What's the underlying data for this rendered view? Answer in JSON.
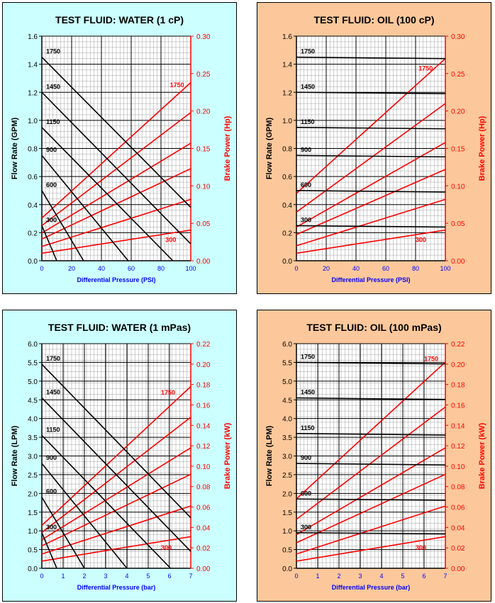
{
  "chart_data": [
    {
      "type": "line",
      "title": "TEST FLUID:  WATER (1 cP)",
      "background": "#ccffff",
      "xlabel": "Differential Pressure (PSI)",
      "ylabel": "Flow Rate (GPM)",
      "y2label": "Brake Power (Hp)",
      "xlim": [
        0,
        100
      ],
      "ylim": [
        0,
        1.6
      ],
      "y2lim": [
        0,
        0.3
      ],
      "xticks": [
        "0",
        "20",
        "40",
        "60",
        "80",
        "100"
      ],
      "yticks": [
        "0.0",
        "0.2",
        "0.4",
        "0.6",
        "0.8",
        "1.0",
        "1.2",
        "1.4",
        "1.6"
      ],
      "y2ticks": [
        "0.00",
        "0.05",
        "0.10",
        "0.15",
        "0.20",
        "0.25",
        "0.30"
      ],
      "flow_series": [
        {
          "name": "1750",
          "x": [
            0,
            100
          ],
          "y": [
            1.45,
            0.38
          ]
        },
        {
          "name": "1450",
          "x": [
            0,
            100
          ],
          "y": [
            1.2,
            0.12
          ]
        },
        {
          "name": "1150",
          "x": [
            0,
            88
          ],
          "y": [
            0.95,
            0
          ]
        },
        {
          "name": "900",
          "x": [
            0,
            58
          ],
          "y": [
            0.75,
            0
          ]
        },
        {
          "name": "600",
          "x": [
            0,
            28
          ],
          "y": [
            0.5,
            0
          ]
        },
        {
          "name": "300",
          "x": [
            0,
            10
          ],
          "y": [
            0.25,
            0
          ]
        }
      ],
      "power_series": [
        {
          "name": "1750",
          "x": [
            0,
            100
          ],
          "y": [
            0.057,
            0.238
          ]
        },
        {
          "name": "1450",
          "x": [
            0,
            100
          ],
          "y": [
            0.047,
            0.198
          ]
        },
        {
          "name": "1150",
          "x": [
            0,
            100
          ],
          "y": [
            0.037,
            0.157
          ]
        },
        {
          "name": "900",
          "x": [
            0,
            100
          ],
          "y": [
            0.029,
            0.123
          ]
        },
        {
          "name": "600",
          "x": [
            0,
            100
          ],
          "y": [
            0.019,
            0.082
          ]
        },
        {
          "name": "300",
          "x": [
            0,
            100
          ],
          "y": [
            0.01,
            0.041
          ]
        }
      ],
      "power_labels": [
        {
          "text": "1750",
          "x": 86,
          "y": 0.232
        },
        {
          "text": "300",
          "x": 83,
          "y": 0.025
        }
      ]
    },
    {
      "type": "line",
      "title": "TEST FLUID:  OIL (100 cP)",
      "background": "#fcc89b",
      "xlabel": "Differential Pressure (PSI)",
      "ylabel": "Flow Rate (GPM)",
      "y2label": "Brake Power (Hp)",
      "xlim": [
        0,
        100
      ],
      "ylim": [
        0,
        1.6
      ],
      "y2lim": [
        0,
        0.3
      ],
      "xticks": [
        "0",
        "20",
        "40",
        "60",
        "80",
        "100"
      ],
      "yticks": [
        "0.0",
        "0.2",
        "0.4",
        "0.6",
        "0.8",
        "1.0",
        "1.2",
        "1.4",
        "1.6"
      ],
      "y2ticks": [
        "0.00",
        "0.05",
        "0.10",
        "0.15",
        "0.20",
        "0.25",
        "0.30"
      ],
      "flow_series": [
        {
          "name": "1750",
          "x": [
            0,
            100
          ],
          "y": [
            1.45,
            1.44
          ]
        },
        {
          "name": "1450",
          "x": [
            0,
            100
          ],
          "y": [
            1.2,
            1.19
          ]
        },
        {
          "name": "1150",
          "x": [
            0,
            100
          ],
          "y": [
            0.95,
            0.94
          ]
        },
        {
          "name": "900",
          "x": [
            0,
            100
          ],
          "y": [
            0.75,
            0.74
          ]
        },
        {
          "name": "600",
          "x": [
            0,
            100
          ],
          "y": [
            0.5,
            0.49
          ]
        },
        {
          "name": "300",
          "x": [
            0,
            100
          ],
          "y": [
            0.25,
            0.24
          ]
        }
      ],
      "power_series": [
        {
          "name": "1750",
          "x": [
            0,
            100
          ],
          "y": [
            0.09,
            0.27
          ]
        },
        {
          "name": "1450",
          "x": [
            0,
            100
          ],
          "y": [
            0.065,
            0.21
          ]
        },
        {
          "name": "1150",
          "x": [
            0,
            100
          ],
          "y": [
            0.045,
            0.158
          ]
        },
        {
          "name": "900",
          "x": [
            0,
            100
          ],
          "y": [
            0.035,
            0.122
          ]
        },
        {
          "name": "600",
          "x": [
            0,
            100
          ],
          "y": [
            0.02,
            0.082
          ]
        },
        {
          "name": "300",
          "x": [
            0,
            100
          ],
          "y": [
            0.01,
            0.041
          ]
        }
      ],
      "power_labels": [
        {
          "text": "1750",
          "x": 82,
          "y": 0.254
        },
        {
          "text": "300",
          "x": 80,
          "y": 0.025
        }
      ]
    },
    {
      "type": "line",
      "title": "TEST FLUID:  WATER (1 mPas)",
      "background": "#ccffff",
      "xlabel": "Differential Pressure (bar)",
      "ylabel": "Flow Rate (LPM)",
      "y2label": "Brake Power (kW)",
      "xlim": [
        0,
        7
      ],
      "ylim": [
        0,
        6.0
      ],
      "y2lim": [
        0,
        0.22
      ],
      "xticks": [
        "0",
        "1",
        "2",
        "3",
        "4",
        "5",
        "6",
        "7"
      ],
      "yticks": [
        "0.0",
        "0.5",
        "1.0",
        "1.5",
        "2.0",
        "2.5",
        "3.0",
        "3.5",
        "4.0",
        "4.5",
        "5.0",
        "5.5",
        "6.0"
      ],
      "y2ticks": [
        "0.00",
        "0.02",
        "0.04",
        "0.06",
        "0.08",
        "0.10",
        "0.12",
        "0.14",
        "0.16",
        "0.18",
        "0.20",
        "0.22"
      ],
      "flow_series": [
        {
          "name": "1750",
          "x": [
            0,
            7
          ],
          "y": [
            5.45,
            1.35
          ]
        },
        {
          "name": "1450",
          "x": [
            0,
            7
          ],
          "y": [
            4.55,
            0.45
          ]
        },
        {
          "name": "1150",
          "x": [
            0,
            6.05
          ],
          "y": [
            3.55,
            0
          ]
        },
        {
          "name": "900",
          "x": [
            0,
            4.0
          ],
          "y": [
            2.8,
            0
          ]
        },
        {
          "name": "600",
          "x": [
            0,
            2.0
          ],
          "y": [
            1.9,
            0
          ]
        },
        {
          "name": "300",
          "x": [
            0,
            0.7
          ],
          "y": [
            0.95,
            0
          ]
        }
      ],
      "power_series": [
        {
          "name": "1750",
          "x": [
            0,
            7
          ],
          "y": [
            0.042,
            0.178
          ]
        },
        {
          "name": "1450",
          "x": [
            0,
            7
          ],
          "y": [
            0.035,
            0.148
          ]
        },
        {
          "name": "1150",
          "x": [
            0,
            7
          ],
          "y": [
            0.028,
            0.118
          ]
        },
        {
          "name": "900",
          "x": [
            0,
            7
          ],
          "y": [
            0.022,
            0.092
          ]
        },
        {
          "name": "600",
          "x": [
            0,
            7
          ],
          "y": [
            0.014,
            0.061
          ]
        },
        {
          "name": "300",
          "x": [
            0,
            7
          ],
          "y": [
            0.007,
            0.031
          ]
        }
      ],
      "power_labels": [
        {
          "text": "1750",
          "x": 5.6,
          "y": 0.17
        },
        {
          "text": "300",
          "x": 5.6,
          "y": 0.018
        }
      ]
    },
    {
      "type": "line",
      "title": "TEST FLUID:  OIL (100 mPas)",
      "background": "#fcc89b",
      "xlabel": "Differential Pressure (bar)",
      "ylabel": "Flow Rate (LPM)",
      "y2label": "Brake Power (kW)",
      "xlim": [
        0,
        7
      ],
      "ylim": [
        0,
        6.0
      ],
      "y2lim": [
        0,
        0.22
      ],
      "xticks": [
        "0",
        "1",
        "2",
        "3",
        "4",
        "5",
        "6",
        "7"
      ],
      "yticks": [
        "0.0",
        "0.5",
        "1.0",
        "1.5",
        "2.0",
        "2.5",
        "3.0",
        "3.5",
        "4.0",
        "4.5",
        "5.0",
        "5.5",
        "6.0"
      ],
      "y2ticks": [
        "0.00",
        "0.02",
        "0.04",
        "0.06",
        "0.08",
        "0.10",
        "0.12",
        "0.14",
        "0.16",
        "0.18",
        "0.20",
        "0.22"
      ],
      "flow_series": [
        {
          "name": "1750",
          "x": [
            0,
            7
          ],
          "y": [
            5.5,
            5.46
          ]
        },
        {
          "name": "1450",
          "x": [
            0,
            7
          ],
          "y": [
            4.55,
            4.51
          ]
        },
        {
          "name": "1150",
          "x": [
            0,
            7
          ],
          "y": [
            3.6,
            3.56
          ]
        },
        {
          "name": "900",
          "x": [
            0,
            7
          ],
          "y": [
            2.8,
            2.76
          ]
        },
        {
          "name": "600",
          "x": [
            0,
            7
          ],
          "y": [
            1.85,
            1.82
          ]
        },
        {
          "name": "300",
          "x": [
            0,
            7
          ],
          "y": [
            0.95,
            0.92
          ]
        }
      ],
      "power_series": [
        {
          "name": "1750",
          "x": [
            0,
            7
          ],
          "y": [
            0.068,
            0.202
          ]
        },
        {
          "name": "1450",
          "x": [
            0,
            7
          ],
          "y": [
            0.048,
            0.158
          ]
        },
        {
          "name": "1150",
          "x": [
            0,
            7
          ],
          "y": [
            0.033,
            0.118
          ]
        },
        {
          "name": "900",
          "x": [
            0,
            7
          ],
          "y": [
            0.025,
            0.092
          ]
        },
        {
          "name": "600",
          "x": [
            0,
            7
          ],
          "y": [
            0.014,
            0.061
          ]
        },
        {
          "name": "300",
          "x": [
            0,
            7
          ],
          "y": [
            0.007,
            0.031
          ]
        }
      ],
      "power_labels": [
        {
          "text": "1750",
          "x": 6.0,
          "y": 0.203
        },
        {
          "text": "300",
          "x": 5.6,
          "y": 0.018
        }
      ]
    }
  ]
}
